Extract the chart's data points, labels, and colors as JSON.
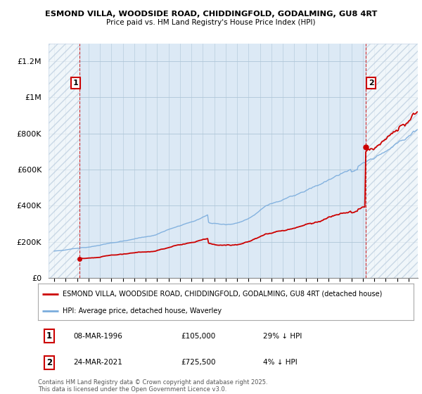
{
  "title1": "ESMOND VILLA, WOODSIDE ROAD, CHIDDINGFOLD, GODALMING, GU8 4RT",
  "title2": "Price paid vs. HM Land Registry's House Price Index (HPI)",
  "legend_label1": "ESMOND VILLA, WOODSIDE ROAD, CHIDDINGFOLD, GODALMING, GU8 4RT (detached house)",
  "legend_label2": "HPI: Average price, detached house, Waverley",
  "footer": "Contains HM Land Registry data © Crown copyright and database right 2025.\nThis data is licensed under the Open Government Licence v3.0.",
  "annotation1_date": "08-MAR-1996",
  "annotation1_price": "£105,000",
  "annotation1_hpi": "29% ↓ HPI",
  "annotation2_date": "24-MAR-2021",
  "annotation2_price": "£725,500",
  "annotation2_hpi": "4% ↓ HPI",
  "line_color_property": "#cc0000",
  "line_color_hpi": "#7aacdd",
  "sale1_x": 1996.19,
  "sale1_y": 105000,
  "sale2_x": 2021.22,
  "sale2_y": 725500,
  "sale1_discount": 0.29,
  "sale2_discount": 0.04,
  "ylim": [
    0,
    1300000
  ],
  "xlim": [
    1993.5,
    2025.8
  ],
  "yticks": [
    0,
    200000,
    400000,
    600000,
    800000,
    1000000,
    1200000
  ],
  "ytick_labels": [
    "£0",
    "£200K",
    "£400K",
    "£600K",
    "£800K",
    "£1M",
    "£1.2M"
  ],
  "background_color": "#ffffff",
  "plot_bg_color": "#dce9f5"
}
